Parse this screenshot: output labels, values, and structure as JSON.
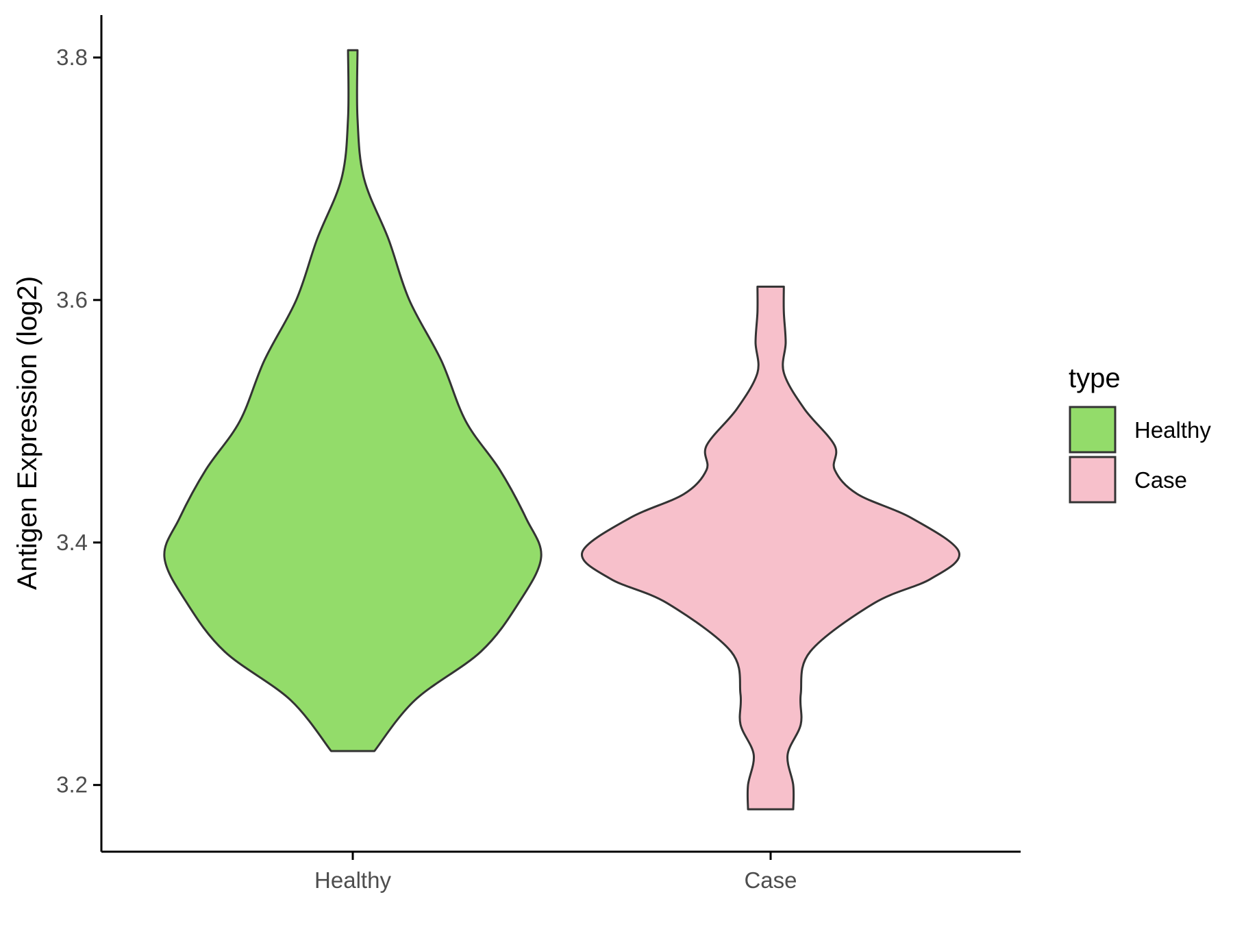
{
  "chart_data": {
    "type": "violin",
    "ylabel": "Antigen Expression (log2)",
    "xlabel": "",
    "ylim": [
      3.145,
      3.835
    ],
    "yticks": [
      3.2,
      3.4,
      3.6,
      3.8
    ],
    "ytick_labels": [
      "3.2",
      "3.4",
      "3.6",
      "3.8"
    ],
    "categories": [
      "Healthy",
      "Case"
    ],
    "legend": {
      "title": "type",
      "placement": "right",
      "entries": [
        {
          "label": "Healthy",
          "color": "#93DC6A"
        },
        {
          "label": "Case",
          "color": "#F7C0CB"
        }
      ]
    },
    "series": [
      {
        "category": "Healthy",
        "color": "#93DC6A",
        "min": 3.228,
        "max": 3.806,
        "density_profile": [
          [
            3.228,
            0.115
          ],
          [
            3.27,
            0.33
          ],
          [
            3.31,
            0.68
          ],
          [
            3.35,
            0.88
          ],
          [
            3.388,
            1.0
          ],
          [
            3.42,
            0.92
          ],
          [
            3.46,
            0.78
          ],
          [
            3.5,
            0.6
          ],
          [
            3.55,
            0.47
          ],
          [
            3.6,
            0.3
          ],
          [
            3.65,
            0.19
          ],
          [
            3.7,
            0.06
          ],
          [
            3.75,
            0.025
          ],
          [
            3.806,
            0.025
          ]
        ]
      },
      {
        "category": "Case",
        "color": "#F7C0CB",
        "min": 3.18,
        "max": 3.611,
        "density_profile": [
          [
            3.18,
            0.12
          ],
          [
            3.2,
            0.12
          ],
          [
            3.225,
            0.09
          ],
          [
            3.25,
            0.16
          ],
          [
            3.275,
            0.16
          ],
          [
            3.31,
            0.21
          ],
          [
            3.35,
            0.55
          ],
          [
            3.37,
            0.85
          ],
          [
            3.392,
            1.0
          ],
          [
            3.42,
            0.75
          ],
          [
            3.44,
            0.46
          ],
          [
            3.46,
            0.34
          ],
          [
            3.48,
            0.34
          ],
          [
            3.51,
            0.18
          ],
          [
            3.54,
            0.07
          ],
          [
            3.565,
            0.08
          ],
          [
            3.59,
            0.07
          ],
          [
            3.611,
            0.07
          ]
        ]
      }
    ]
  }
}
